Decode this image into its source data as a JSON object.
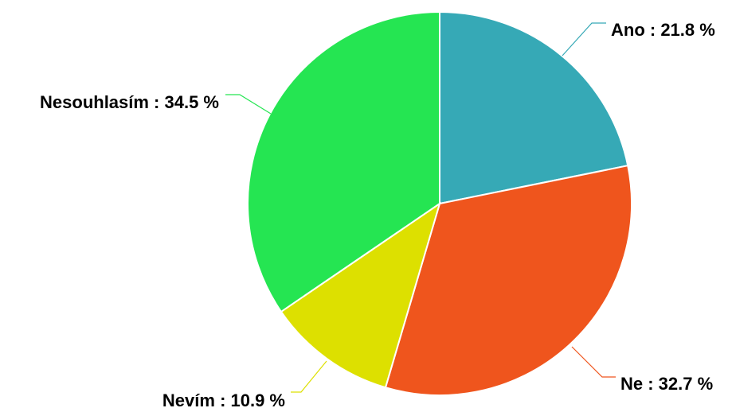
{
  "chart_data": {
    "type": "pie",
    "title": "",
    "slices": [
      {
        "label": "Ano",
        "value": 21.8,
        "text": "Ano : 21.8 %",
        "color": "#36a9b6"
      },
      {
        "label": "Ne",
        "value": 32.7,
        "text": "Ne : 32.7 %",
        "color": "#ef551d"
      },
      {
        "label": "Nevím",
        "value": 10.9,
        "text": "Nevím : 10.9 %",
        "color": "#dde000"
      },
      {
        "label": "Nesouhlasím",
        "value": 34.5,
        "text": "Nesouhlasím : 34.5 %",
        "color": "#25e552"
      }
    ],
    "start_angle": "top",
    "direction": "clockwise",
    "legend": "none"
  }
}
